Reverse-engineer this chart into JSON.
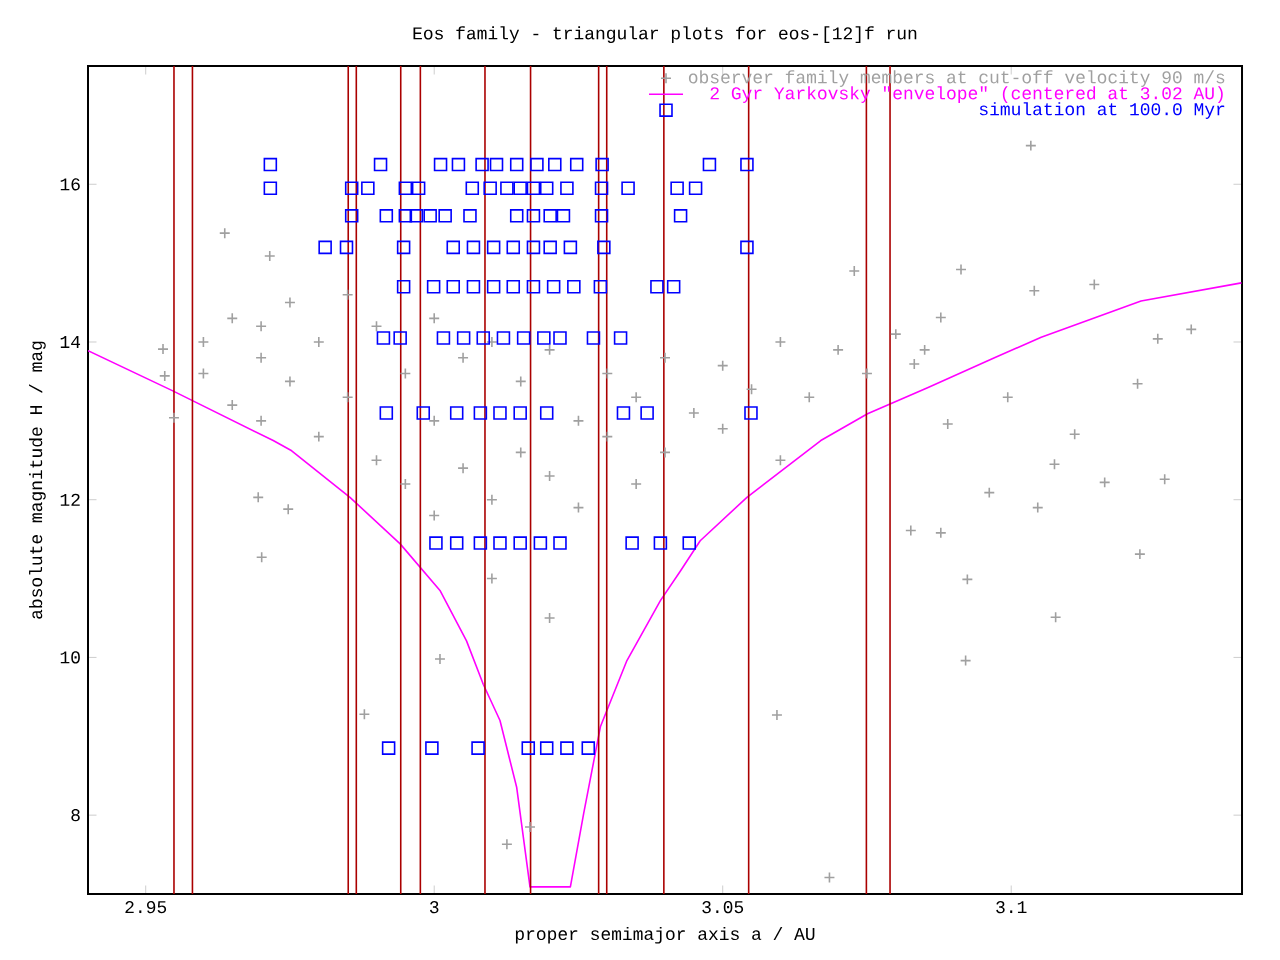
{
  "chart_data": {
    "type": "scatter",
    "title": "Eos family - triangular plots for eos-[12]f run",
    "xlabel": "proper semimajor axis a / AU",
    "ylabel": "absolute magnitude H / mag",
    "xlim": [
      2.94,
      3.14
    ],
    "ylim": [
      7,
      17.5
    ],
    "xticks": [
      2.95,
      3,
      3.05,
      3.1
    ],
    "yticks": [
      8,
      10,
      12,
      14,
      16
    ],
    "legend": "top right",
    "series": [
      {
        "name": "observer family members at cut-off velocity 90 m/s",
        "marker": "cross",
        "color": "#a0a0a0",
        "x": [
          3.0826,
          3.0878,
          3.0924,
          3.1077,
          3.0921,
          3.0594,
          3.0685,
          3.1223,
          3.1162,
          3.1266,
          3.1046,
          3.0962,
          3.1075,
          3.1034,
          3.0728,
          3.0913,
          3.1144,
          3.1312,
          3.1254,
          3.1219,
          3.111,
          3.0994,
          3.104,
          3.0878,
          3.0832,
          3.089,
          2.953,
          2.9533,
          2.9549,
          2.9637,
          2.9715,
          2.9695,
          2.9747,
          2.9701,
          2.9879,
          3.001,
          3.0126,
          3.0166,
          2.96,
          2.96,
          2.965,
          2.965,
          2.97,
          2.97,
          2.97,
          2.975,
          2.975,
          2.98,
          2.98,
          2.985,
          2.985,
          2.99,
          2.99,
          2.995,
          2.995,
          3.0,
          3.0,
          3.0,
          3.005,
          3.005,
          3.01,
          3.01,
          3.01,
          3.015,
          3.015,
          3.02,
          3.02,
          3.02,
          3.025,
          3.025,
          3.03,
          3.03,
          3.035,
          3.035,
          3.04,
          3.04,
          3.045,
          3.05,
          3.05,
          3.055,
          3.06,
          3.06,
          3.065,
          3.07,
          3.075,
          3.08,
          3.085
        ],
        "values": [
          11.61,
          11.58,
          10.99,
          10.51,
          9.96,
          9.27,
          7.21,
          11.31,
          12.22,
          12.26,
          11.9,
          12.09,
          12.45,
          16.49,
          14.9,
          14.92,
          14.73,
          14.16,
          14.04,
          13.47,
          12.83,
          13.3,
          14.65,
          14.31,
          13.72,
          12.96,
          13.91,
          13.57,
          13.04,
          15.38,
          15.09,
          12.03,
          11.88,
          11.27,
          9.28,
          9.98,
          7.63,
          7.85,
          14.0,
          13.6,
          14.3,
          13.2,
          14.2,
          13.8,
          13.0,
          14.5,
          13.5,
          14.0,
          12.8,
          14.6,
          13.3,
          14.2,
          12.5,
          13.6,
          12.2,
          14.3,
          13.0,
          11.8,
          13.8,
          12.4,
          14.0,
          12.0,
          11.0,
          13.5,
          12.6,
          13.9,
          12.3,
          10.5,
          13.0,
          11.9,
          13.6,
          12.8,
          13.3,
          12.2,
          13.8,
          12.6,
          13.1,
          13.7,
          12.9,
          13.4,
          14.0,
          12.5,
          13.3,
          13.9,
          13.6,
          14.1,
          13.9
        ]
      },
      {
        "name": "2 Gyr Yarkovsky \"envelope\" (centered at 3.02 AU)",
        "type": "line",
        "marker": "none",
        "color": "#ff00ff",
        "x": [
          2.94,
          2.9547,
          2.9721,
          2.9753,
          2.9854,
          2.9941,
          3.001,
          3.0056,
          3.0085,
          3.0114,
          3.0143,
          3.0166,
          3.0236,
          3.0259,
          3.0288,
          3.0334,
          3.0392,
          3.0427,
          3.0461,
          3.0542,
          3.067,
          3.0751,
          3.0855,
          3.0971,
          3.1052,
          3.1225,
          3.1399
        ],
        "values": [
          13.89,
          13.38,
          12.75,
          12.62,
          12.03,
          11.44,
          10.85,
          10.21,
          9.66,
          9.2,
          8.35,
          7.09,
          7.09,
          8.02,
          9.12,
          9.96,
          10.72,
          11.1,
          11.48,
          12.03,
          12.75,
          13.09,
          13.42,
          13.8,
          14.06,
          14.52,
          14.75
        ]
      },
      {
        "name": "simulation at 100.0 Myr",
        "marker": "square",
        "color": "#0000ff",
        "x": [
          2.9716,
          2.9907,
          3.0011,
          3.0042,
          3.0083,
          3.0108,
          3.0143,
          3.0178,
          3.0209,
          3.0247,
          3.0291,
          3.0477,
          3.0542,
          2.9716,
          2.9857,
          2.9885,
          2.995,
          2.9973,
          3.0066,
          3.0097,
          3.0126,
          3.0149,
          3.0172,
          3.0195,
          3.023,
          3.029,
          3.0336,
          3.0421,
          3.0453,
          2.9857,
          2.9917,
          2.995,
          2.9969,
          2.9993,
          3.0019,
          3.0062,
          3.0143,
          3.0172,
          3.0201,
          3.0224,
          3.029,
          3.0427,
          2.9811,
          2.9848,
          2.9947,
          3.0033,
          3.0068,
          3.0103,
          3.0137,
          3.0172,
          3.0201,
          3.0236,
          3.0294,
          3.0542,
          2.9947,
          2.9999,
          3.0033,
          3.0068,
          3.0103,
          3.0137,
          3.0172,
          3.0207,
          3.0242,
          3.0288,
          3.0386,
          3.0415,
          2.9912,
          2.9941,
          3.0016,
          3.0051,
          3.0085,
          3.012,
          3.0155,
          3.019,
          3.0218,
          3.0276,
          3.0323,
          2.9917,
          2.9981,
          3.0039,
          3.008,
          3.0114,
          3.0149,
          3.0195,
          3.0328,
          3.0369,
          3.0549,
          3.0003,
          3.0039,
          3.008,
          3.0114,
          3.0149,
          3.0184,
          3.0218,
          3.0343,
          3.0392,
          3.0442,
          2.9921,
          2.9996,
          3.0076,
          3.0163,
          3.0195,
          3.023,
          3.0267
        ],
        "values": [
          16.25,
          16.25,
          16.25,
          16.25,
          16.25,
          16.25,
          16.25,
          16.25,
          16.25,
          16.25,
          16.25,
          16.25,
          16.25,
          15.95,
          15.95,
          15.95,
          15.95,
          15.95,
          15.95,
          15.95,
          15.95,
          15.95,
          15.95,
          15.95,
          15.95,
          15.95,
          15.95,
          15.95,
          15.95,
          15.6,
          15.6,
          15.6,
          15.6,
          15.6,
          15.6,
          15.6,
          15.6,
          15.6,
          15.6,
          15.6,
          15.6,
          15.6,
          15.2,
          15.2,
          15.2,
          15.2,
          15.2,
          15.2,
          15.2,
          15.2,
          15.2,
          15.2,
          15.2,
          15.2,
          14.7,
          14.7,
          14.7,
          14.7,
          14.7,
          14.7,
          14.7,
          14.7,
          14.7,
          14.7,
          14.7,
          14.7,
          14.05,
          14.05,
          14.05,
          14.05,
          14.05,
          14.05,
          14.05,
          14.05,
          14.05,
          14.05,
          14.05,
          13.1,
          13.1,
          13.1,
          13.1,
          13.1,
          13.1,
          13.1,
          13.1,
          13.1,
          13.1,
          11.45,
          11.45,
          11.45,
          11.45,
          11.45,
          11.45,
          11.45,
          11.45,
          11.45,
          11.45,
          8.85,
          8.85,
          8.85,
          8.85,
          8.85,
          8.85,
          8.85
        ]
      }
    ],
    "ref_lines": [
      {
        "axis": "x",
        "value": 2.9549,
        "color": "#aa0000"
      },
      {
        "axis": "x",
        "value": 2.9581,
        "color": "#aa0000"
      },
      {
        "axis": "x",
        "value": 2.9851,
        "color": "#aa0000"
      },
      {
        "axis": "x",
        "value": 2.9865,
        "color": "#aa0000"
      },
      {
        "axis": "x",
        "value": 2.9942,
        "color": "#aa0000"
      },
      {
        "axis": "x",
        "value": 2.9976,
        "color": "#aa0000"
      },
      {
        "axis": "x",
        "value": 3.0088,
        "color": "#aa0000"
      },
      {
        "axis": "x",
        "value": 3.0167,
        "color": "#aa0000"
      },
      {
        "axis": "x",
        "value": 3.0285,
        "color": "#aa0000"
      },
      {
        "axis": "x",
        "value": 3.0299,
        "color": "#aa0000"
      },
      {
        "axis": "x",
        "value": 3.0398,
        "color": "#aa0000"
      },
      {
        "axis": "x",
        "value": 3.0545,
        "color": "#aa0000"
      },
      {
        "axis": "x",
        "value": 3.0749,
        "color": "#aa0000"
      },
      {
        "axis": "x",
        "value": 3.079,
        "color": "#aa0000"
      }
    ]
  }
}
